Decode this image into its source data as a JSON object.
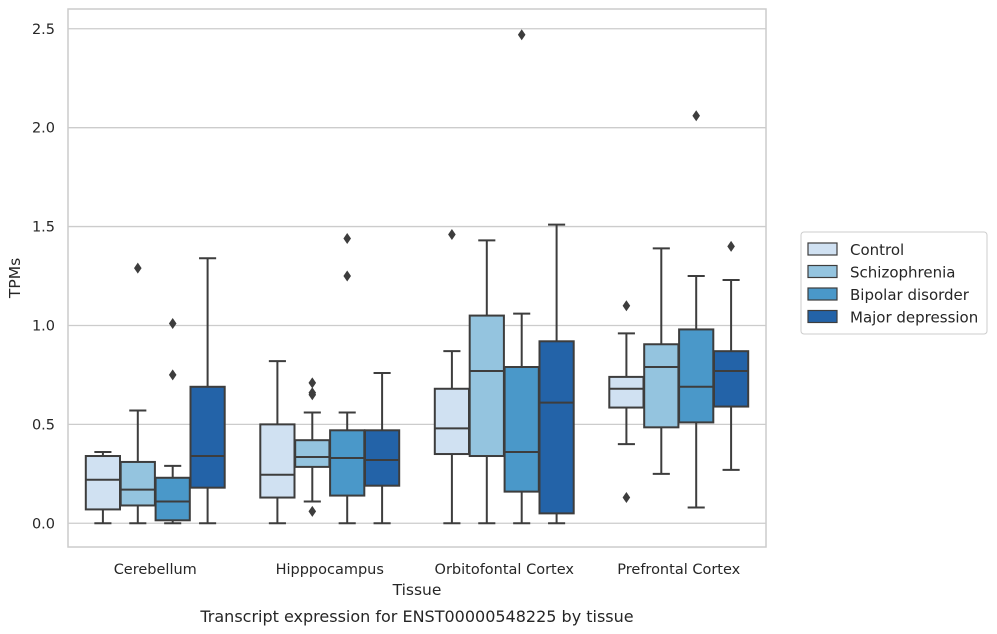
{
  "chart_data": {
    "type": "box",
    "xlabel": "Tissue",
    "ylabel": "TPMs",
    "caption": "Transcript expression for ENST00000548225 by tissue",
    "ylim": [
      -0.12,
      2.6
    ],
    "yticks": [
      "0.0",
      "0.5",
      "1.0",
      "1.5",
      "2.0",
      "2.5"
    ],
    "grid": "horizontal",
    "legend_position": "right",
    "categories": [
      "Cerebellum",
      "Hipppocampus",
      "Orbitofontal Cortex",
      "Prefrontal Cortex"
    ],
    "series": [
      {
        "name": "Control",
        "color": "#d0e1f2",
        "boxes": [
          {
            "whislo": 0.0,
            "q1": 0.07,
            "med": 0.22,
            "q3": 0.34,
            "whishi": 0.36,
            "fliers": []
          },
          {
            "whislo": 0.0,
            "q1": 0.13,
            "med": 0.245,
            "q3": 0.5,
            "whishi": 0.82,
            "fliers": []
          },
          {
            "whislo": 0.0,
            "q1": 0.35,
            "med": 0.48,
            "q3": 0.68,
            "whishi": 0.87,
            "fliers": [
              1.46
            ]
          },
          {
            "whislo": 0.4,
            "q1": 0.585,
            "med": 0.68,
            "q3": 0.74,
            "whishi": 0.96,
            "fliers": [
              1.1,
              0.13
            ]
          }
        ]
      },
      {
        "name": "Schizophrenia",
        "color": "#94c4df",
        "boxes": [
          {
            "whislo": 0.0,
            "q1": 0.09,
            "med": 0.17,
            "q3": 0.31,
            "whishi": 0.57,
            "fliers": [
              1.29
            ]
          },
          {
            "whislo": 0.11,
            "q1": 0.285,
            "med": 0.335,
            "q3": 0.42,
            "whishi": 0.56,
            "fliers": [
              0.71,
              0.66,
              0.65,
              0.06
            ]
          },
          {
            "whislo": 0.0,
            "q1": 0.34,
            "med": 0.77,
            "q3": 1.05,
            "whishi": 1.43,
            "fliers": []
          },
          {
            "whislo": 0.25,
            "q1": 0.485,
            "med": 0.79,
            "q3": 0.905,
            "whishi": 1.39,
            "fliers": []
          }
        ]
      },
      {
        "name": "Bipolar disorder",
        "color": "#4a98c9",
        "boxes": [
          {
            "whislo": 0.0,
            "q1": 0.015,
            "med": 0.11,
            "q3": 0.23,
            "whishi": 0.29,
            "fliers": [
              1.01,
              0.75
            ]
          },
          {
            "whislo": 0.0,
            "q1": 0.14,
            "med": 0.33,
            "q3": 0.47,
            "whishi": 0.56,
            "fliers": [
              1.44,
              1.25
            ]
          },
          {
            "whislo": 0.0,
            "q1": 0.16,
            "med": 0.36,
            "q3": 0.79,
            "whishi": 1.06,
            "fliers": [
              2.47
            ]
          },
          {
            "whislo": 0.08,
            "q1": 0.51,
            "med": 0.69,
            "q3": 0.98,
            "whishi": 1.25,
            "fliers": [
              2.06
            ]
          }
        ]
      },
      {
        "name": "Major depression",
        "color": "#2363a8",
        "boxes": [
          {
            "whislo": 0.0,
            "q1": 0.18,
            "med": 0.34,
            "q3": 0.69,
            "whishi": 1.34,
            "fliers": []
          },
          {
            "whislo": 0.0,
            "q1": 0.19,
            "med": 0.32,
            "q3": 0.47,
            "whishi": 0.76,
            "fliers": []
          },
          {
            "whislo": 0.0,
            "q1": 0.05,
            "med": 0.61,
            "q3": 0.92,
            "whishi": 1.51,
            "fliers": []
          },
          {
            "whislo": 0.27,
            "q1": 0.59,
            "med": 0.77,
            "q3": 0.87,
            "whishi": 1.23,
            "fliers": [
              1.4
            ]
          }
        ]
      }
    ]
  }
}
